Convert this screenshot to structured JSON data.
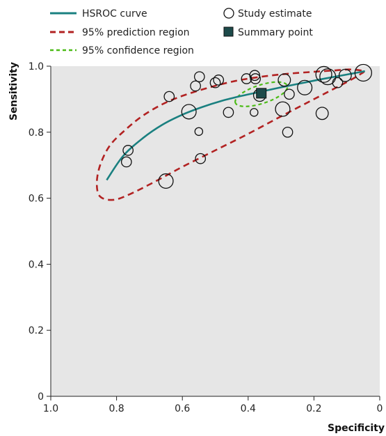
{
  "chart_data": {
    "type": "scatter",
    "xlabel": "Specificity",
    "ylabel": "Sensitivity",
    "xlim": [
      1.0,
      0
    ],
    "ylim": [
      0,
      1.0
    ],
    "x_reversed": true,
    "grid": false,
    "background": "#e6e6e6",
    "x_ticks": [
      1.0,
      0.8,
      0.6,
      0.4,
      0.2,
      0
    ],
    "x_tick_labels": [
      "1.0",
      "0.8",
      "0.6",
      "0.4",
      "0.2",
      "0"
    ],
    "y_ticks": [
      0,
      0.2,
      0.4,
      0.6,
      0.8,
      1.0
    ],
    "y_tick_labels": [
      "0",
      "0.2",
      "0.4",
      "0.6",
      "0.8",
      "1.0"
    ],
    "legend_position": "top",
    "legend": [
      {
        "label": "HSROC curve",
        "marker": "solid-line",
        "color": "#1a8080"
      },
      {
        "label": "95% prediction region",
        "marker": "dashed-line",
        "color": "#b22222"
      },
      {
        "label": "95% confidence region",
        "marker": "dashed-line",
        "color": "#4cbb17"
      },
      {
        "label": "Study estimate",
        "marker": "open-circle",
        "color": "#111111"
      },
      {
        "label": "Summary point",
        "marker": "filled-square",
        "color": "#1d4a4a"
      }
    ],
    "series": [
      {
        "label_ref": "Study estimate",
        "kind": "points",
        "points": [
          {
            "x": 0.765,
            "y": 0.745,
            "size": 1
          },
          {
            "x": 0.77,
            "y": 0.71,
            "size": 1
          },
          {
            "x": 0.65,
            "y": 0.652,
            "size": 2
          },
          {
            "x": 0.64,
            "y": 0.908,
            "size": 1
          },
          {
            "x": 0.58,
            "y": 0.862,
            "size": 2
          },
          {
            "x": 0.56,
            "y": 0.94,
            "size": 1
          },
          {
            "x": 0.548,
            "y": 0.968,
            "size": 1
          },
          {
            "x": 0.55,
            "y": 0.802,
            "size": 0.5
          },
          {
            "x": 0.545,
            "y": 0.72,
            "size": 1
          },
          {
            "x": 0.5,
            "y": 0.95,
            "size": 1
          },
          {
            "x": 0.49,
            "y": 0.958,
            "size": 1
          },
          {
            "x": 0.46,
            "y": 0.86,
            "size": 1
          },
          {
            "x": 0.405,
            "y": 0.962,
            "size": 1
          },
          {
            "x": 0.38,
            "y": 0.972,
            "size": 1
          },
          {
            "x": 0.378,
            "y": 0.962,
            "size": 1
          },
          {
            "x": 0.382,
            "y": 0.86,
            "size": 0.5
          },
          {
            "x": 0.365,
            "y": 0.912,
            "size": 1.5
          },
          {
            "x": 0.29,
            "y": 0.958,
            "size": 1.5
          },
          {
            "x": 0.275,
            "y": 0.915,
            "size": 1
          },
          {
            "x": 0.295,
            "y": 0.87,
            "size": 2
          },
          {
            "x": 0.28,
            "y": 0.8,
            "size": 1
          },
          {
            "x": 0.228,
            "y": 0.935,
            "size": 2
          },
          {
            "x": 0.175,
            "y": 0.857,
            "size": 1.5
          },
          {
            "x": 0.17,
            "y": 0.975,
            "size": 2.3
          },
          {
            "x": 0.158,
            "y": 0.968,
            "size": 2.3
          },
          {
            "x": 0.128,
            "y": 0.95,
            "size": 1
          },
          {
            "x": 0.105,
            "y": 0.972,
            "size": 1.5
          },
          {
            "x": 0.05,
            "y": 0.98,
            "size": 2.5
          }
        ]
      },
      {
        "label_ref": "Summary point",
        "kind": "point",
        "x": 0.36,
        "y": 0.918
      },
      {
        "label_ref": "HSROC curve",
        "kind": "line",
        "x": [
          0.83,
          0.78,
          0.72,
          0.66,
          0.6,
          0.54,
          0.48,
          0.42,
          0.36,
          0.3,
          0.24,
          0.18,
          0.12,
          0.06,
          0.045
        ],
        "y": [
          0.655,
          0.728,
          0.782,
          0.823,
          0.853,
          0.876,
          0.895,
          0.91,
          0.923,
          0.936,
          0.948,
          0.96,
          0.971,
          0.982,
          0.985
        ]
      },
      {
        "label_ref": "95% prediction region",
        "kind": "closed-path",
        "x": [
          0.05,
          0.06,
          0.1,
          0.2,
          0.3,
          0.4,
          0.5,
          0.6,
          0.68,
          0.76,
          0.81,
          0.85,
          0.86,
          0.85,
          0.82,
          0.77,
          0.72,
          0.66,
          0.6,
          0.52,
          0.44,
          0.36,
          0.28,
          0.2,
          0.14,
          0.09,
          0.05
        ],
        "y": [
          0.985,
          0.975,
          0.952,
          0.9,
          0.848,
          0.795,
          0.745,
          0.695,
          0.652,
          0.612,
          0.595,
          0.605,
          0.645,
          0.7,
          0.76,
          0.81,
          0.85,
          0.885,
          0.91,
          0.935,
          0.955,
          0.968,
          0.977,
          0.983,
          0.987,
          0.99,
          0.985
        ]
      },
      {
        "label_ref": "95% confidence region",
        "kind": "closed-path",
        "center": [
          0.36,
          0.915
        ],
        "x_radius": 0.083,
        "y_radius": 0.028,
        "tilt_deg": 18
      }
    ]
  }
}
